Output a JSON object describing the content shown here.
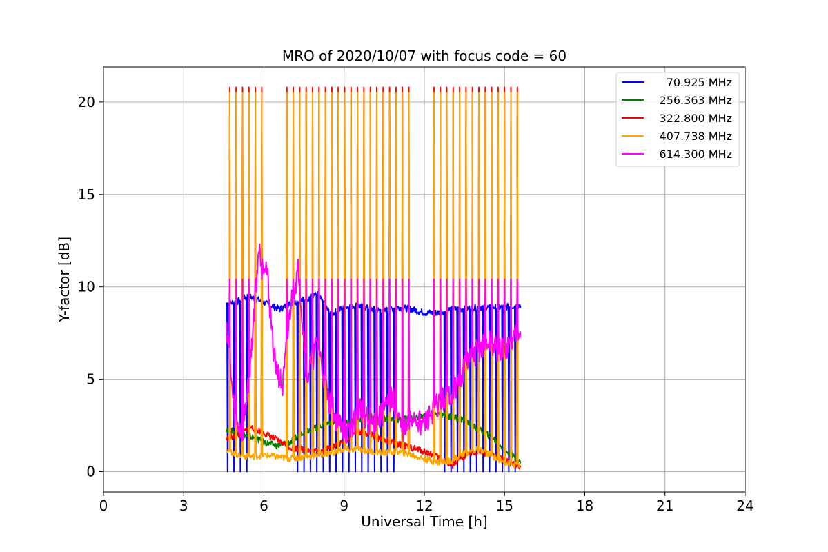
{
  "chart_data": {
    "type": "line",
    "title": "MRO of 2020/10/07 with focus code = 60",
    "xlabel": "Universal Time [h]",
    "ylabel": "Y-factor [dB]",
    "xlim": [
      0,
      24
    ],
    "ylim": [
      -1.1,
      21.9
    ],
    "xticks": [
      0,
      3,
      6,
      9,
      12,
      15,
      18,
      21,
      24
    ],
    "yticks": [
      0,
      5,
      10,
      15,
      20
    ],
    "grid": true,
    "legend_position": "top-right",
    "x_range_observed": [
      4.6,
      15.6
    ],
    "calibration_pulse_peaks": {
      "x_start": 4.6,
      "x_end": 15.6,
      "count": 46,
      "red_peak": 20.8,
      "orange_peak": 20.5,
      "magenta_peak": 10.4
    },
    "series": [
      {
        "name": "70.925 MHz",
        "color": "#0000ff",
        "x": [
          4.6,
          5.0,
          5.4,
          5.8,
          6.2,
          6.6,
          7.0,
          7.5,
          8.0,
          8.5,
          9.0,
          9.5,
          10.0,
          10.5,
          11.0,
          11.5,
          12.0,
          12.5,
          13.0,
          13.5,
          14.0,
          14.5,
          15.0,
          15.6
        ],
        "values": [
          9.1,
          9.2,
          9.5,
          9.3,
          9.0,
          8.8,
          9.1,
          9.3,
          9.6,
          8.5,
          8.9,
          9.0,
          8.8,
          8.7,
          8.9,
          8.8,
          8.6,
          8.6,
          8.8,
          8.8,
          8.9,
          8.9,
          8.9,
          9.0
        ]
      },
      {
        "name": "256.363 MHz",
        "color": "#008000",
        "x": [
          4.6,
          5.0,
          5.5,
          6.0,
          6.5,
          7.0,
          7.5,
          8.0,
          8.5,
          9.0,
          9.5,
          10.0,
          10.5,
          11.0,
          11.5,
          12.0,
          12.5,
          13.0,
          13.5,
          14.0,
          14.5,
          15.0,
          15.6
        ],
        "values": [
          2.3,
          2.1,
          1.9,
          1.6,
          1.4,
          1.6,
          2.2,
          2.4,
          2.7,
          2.6,
          2.8,
          3.0,
          2.9,
          2.8,
          2.9,
          3.0,
          3.1,
          3.0,
          2.8,
          2.3,
          1.9,
          1.2,
          0.5
        ]
      },
      {
        "name": "322.800 MHz",
        "color": "#ff0000",
        "x": [
          4.6,
          5.0,
          5.5,
          6.0,
          6.5,
          7.0,
          7.5,
          8.0,
          8.5,
          9.0,
          9.5,
          10.0,
          10.5,
          11.0,
          11.5,
          12.0,
          12.5,
          13.0,
          13.5,
          14.0,
          14.5,
          15.0,
          15.6
        ],
        "values": [
          1.8,
          1.9,
          2.4,
          2.1,
          1.7,
          1.3,
          1.2,
          1.1,
          1.3,
          1.6,
          2.2,
          2.0,
          1.7,
          1.5,
          1.3,
          1.1,
          0.8,
          0.3,
          0.8,
          1.1,
          0.9,
          0.6,
          0.2
        ]
      },
      {
        "name": "407.738 MHz",
        "color": "#ffa500",
        "x": [
          4.6,
          5.0,
          5.5,
          6.0,
          6.5,
          7.0,
          7.5,
          8.0,
          8.5,
          9.0,
          9.5,
          10.0,
          10.5,
          11.0,
          11.5,
          12.0,
          12.5,
          13.0,
          13.5,
          14.0,
          14.5,
          15.0,
          15.6
        ],
        "values": [
          1.2,
          0.9,
          0.8,
          0.9,
          0.8,
          0.7,
          0.8,
          0.9,
          1.0,
          1.2,
          1.2,
          1.1,
          1.0,
          1.1,
          0.9,
          0.7,
          0.5,
          0.6,
          1.0,
          1.2,
          0.9,
          0.5,
          0.3
        ]
      },
      {
        "name": "614.300 MHz",
        "color": "#ff00ff",
        "x": [
          4.6,
          4.9,
          5.2,
          5.5,
          5.8,
          6.1,
          6.4,
          6.7,
          7.0,
          7.3,
          7.6,
          8.0,
          8.4,
          8.8,
          9.2,
          9.6,
          10.0,
          10.4,
          10.8,
          11.2,
          11.6,
          12.0,
          12.4,
          12.8,
          13.2,
          13.6,
          14.0,
          14.4,
          14.8,
          15.2,
          15.6
        ],
        "values": [
          8.0,
          3.0,
          2.0,
          6.0,
          12.0,
          11.0,
          6.0,
          4.5,
          9.0,
          11.0,
          5.0,
          7.0,
          4.0,
          2.5,
          2.0,
          3.5,
          2.5,
          3.0,
          4.0,
          2.0,
          3.0,
          2.5,
          3.5,
          4.0,
          4.5,
          6.0,
          6.5,
          7.0,
          6.5,
          6.8,
          8.0
        ]
      }
    ]
  }
}
